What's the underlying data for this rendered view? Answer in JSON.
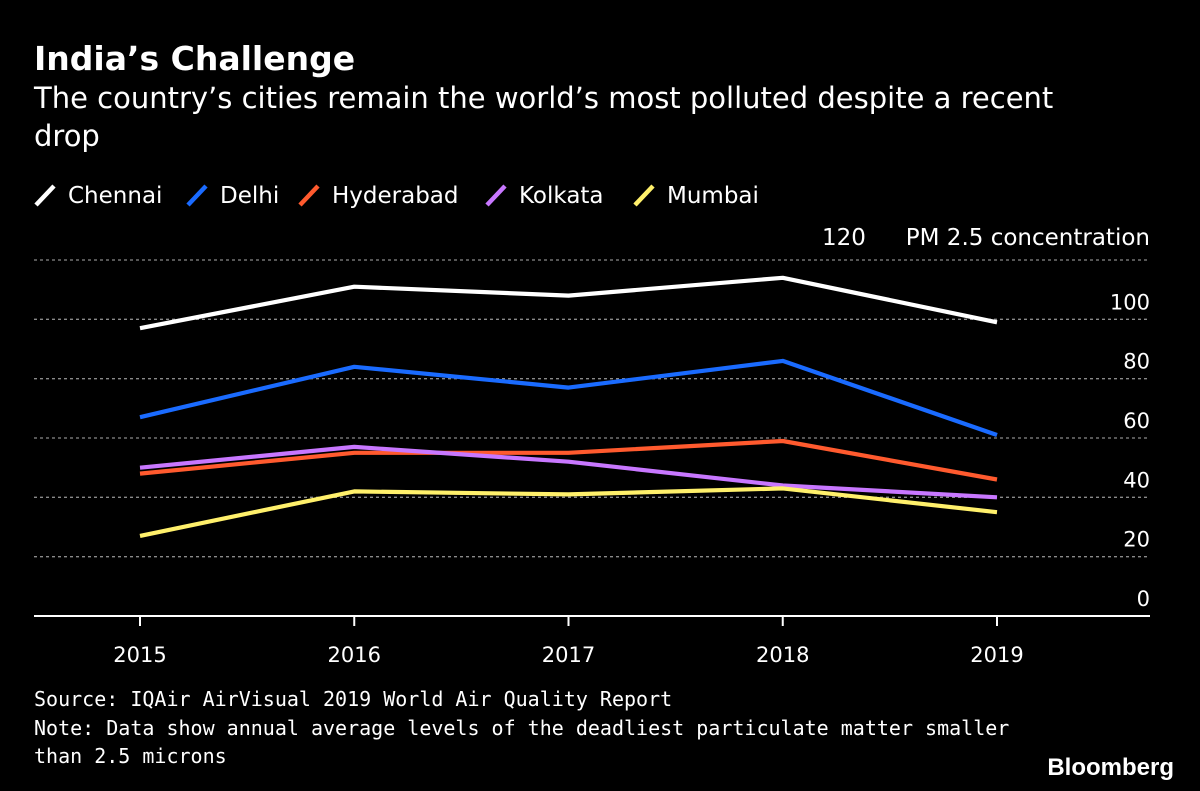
{
  "chart_data": {
    "type": "line",
    "title": "India’s Challenge",
    "subtitle_lines": [
      "The country’s cities remain the world’s most polluted despite a recent",
      "drop"
    ],
    "ylabel": "PM 2.5 concentration",
    "ylim": [
      0,
      120
    ],
    "yticks": [
      0,
      20,
      40,
      60,
      80,
      100,
      120
    ],
    "grid": true,
    "legend_position": "top-left",
    "categories": [
      "2015",
      "2016",
      "2017",
      "2018",
      "2019"
    ],
    "series": [
      {
        "name": "Chennai",
        "color": "#ffffff",
        "values": [
          97,
          111,
          108,
          114,
          99
        ]
      },
      {
        "name": "Delhi",
        "color": "#1a6bff",
        "values": [
          67,
          84,
          77,
          86,
          61
        ]
      },
      {
        "name": "Hyderabad",
        "color": "#ff5a2e",
        "values": [
          48,
          55,
          55,
          59,
          46
        ]
      },
      {
        "name": "Kolkata",
        "color": "#c877ff",
        "values": [
          50,
          57,
          52,
          44,
          40
        ]
      },
      {
        "name": "Mumbai",
        "color": "#fff06b",
        "values": [
          27,
          42,
          41,
          43,
          35
        ]
      }
    ]
  },
  "footer": {
    "source": "Source: IQAir AirVisual 2019 World Air Quality Report",
    "note_lines": [
      "Note: Data show annual average levels of the deadliest particulate matter smaller",
      "than 2.5 microns"
    ]
  },
  "brand": "Bloomberg"
}
